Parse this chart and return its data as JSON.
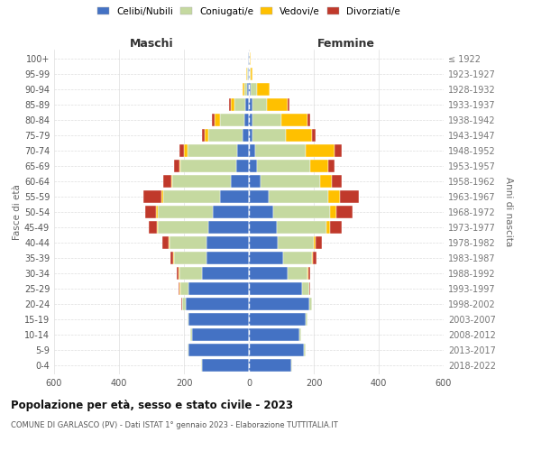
{
  "age_groups": [
    "0-4",
    "5-9",
    "10-14",
    "15-19",
    "20-24",
    "25-29",
    "30-34",
    "35-39",
    "40-44",
    "45-49",
    "50-54",
    "55-59",
    "60-64",
    "65-69",
    "70-74",
    "75-79",
    "80-84",
    "85-89",
    "90-94",
    "95-99",
    "100+"
  ],
  "birth_years": [
    "2018-2022",
    "2013-2017",
    "2008-2012",
    "2003-2007",
    "1998-2002",
    "1993-1997",
    "1988-1992",
    "1983-1987",
    "1978-1982",
    "1973-1977",
    "1968-1972",
    "1963-1967",
    "1958-1962",
    "1953-1957",
    "1948-1952",
    "1943-1947",
    "1938-1942",
    "1933-1937",
    "1928-1932",
    "1923-1927",
    "≤ 1922"
  ],
  "maschi": {
    "celibi": [
      145,
      185,
      175,
      185,
      195,
      185,
      145,
      130,
      130,
      125,
      110,
      90,
      55,
      40,
      35,
      20,
      15,
      10,
      5,
      3,
      2
    ],
    "coniugati": [
      3,
      5,
      5,
      5,
      10,
      25,
      70,
      100,
      115,
      155,
      170,
      175,
      180,
      170,
      155,
      105,
      75,
      35,
      10,
      3,
      2
    ],
    "vedovi": [
      0,
      0,
      0,
      0,
      0,
      3,
      2,
      3,
      3,
      3,
      5,
      5,
      5,
      5,
      10,
      10,
      15,
      10,
      5,
      2,
      0
    ],
    "divorziati": [
      0,
      0,
      0,
      0,
      2,
      3,
      5,
      10,
      20,
      25,
      35,
      55,
      25,
      15,
      15,
      10,
      10,
      5,
      0,
      0,
      0
    ]
  },
  "femmine": {
    "nubili": [
      130,
      170,
      155,
      175,
      185,
      165,
      120,
      105,
      90,
      85,
      75,
      60,
      35,
      25,
      20,
      10,
      10,
      10,
      5,
      3,
      2
    ],
    "coniugate": [
      3,
      5,
      5,
      5,
      10,
      20,
      60,
      90,
      110,
      155,
      175,
      185,
      185,
      165,
      155,
      105,
      90,
      45,
      20,
      3,
      2
    ],
    "vedove": [
      0,
      0,
      0,
      0,
      0,
      2,
      3,
      3,
      5,
      10,
      20,
      35,
      35,
      55,
      90,
      80,
      80,
      65,
      40,
      5,
      2
    ],
    "divorziate": [
      0,
      0,
      0,
      0,
      0,
      3,
      5,
      10,
      20,
      35,
      50,
      60,
      30,
      20,
      20,
      10,
      10,
      5,
      0,
      0,
      0
    ]
  },
  "colors": {
    "celibi": "#4472c4",
    "coniugati": "#c5d9a0",
    "vedovi": "#ffc000",
    "divorziati": "#c0392b"
  },
  "title": "Popolazione per età, sesso e stato civile - 2023",
  "subtitle": "COMUNE DI GARLASCO (PV) - Dati ISTAT 1° gennaio 2023 - Elaborazione TUTTITALIA.IT",
  "xlabel_left": "Maschi",
  "xlabel_right": "Femmine",
  "ylabel_left": "Fasce di età",
  "ylabel_right": "Anni di nascita",
  "xlim": 600,
  "legend_labels": [
    "Celibi/Nubili",
    "Coniugati/e",
    "Vedovi/e",
    "Divorziati/e"
  ],
  "background_color": "#ffffff"
}
